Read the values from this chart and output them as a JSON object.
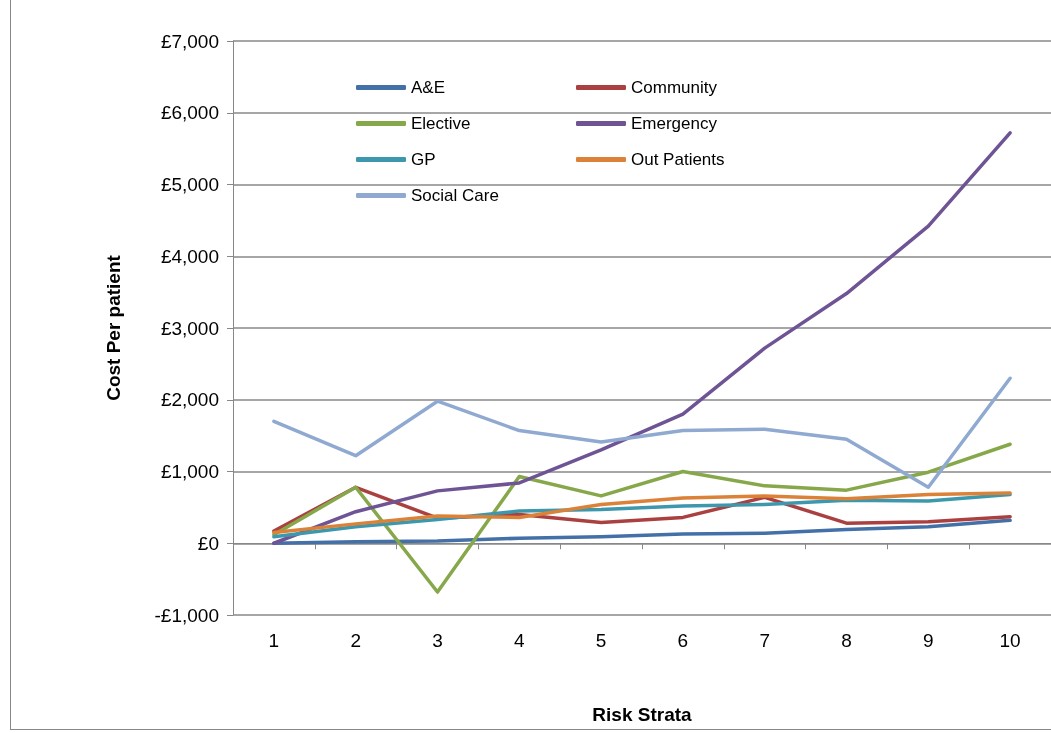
{
  "chart_data": {
    "type": "line",
    "xlabel": "Risk Strata",
    "ylabel": "Cost Per patient",
    "categories": [
      "1",
      "2",
      "3",
      "4",
      "5",
      "6",
      "7",
      "8",
      "9",
      "10"
    ],
    "series": [
      {
        "name": "A&E",
        "color": "#4470a8",
        "values": [
          0,
          20,
          30,
          70,
          90,
          130,
          140,
          190,
          230,
          320
        ]
      },
      {
        "name": "Community",
        "color": "#aa4140",
        "values": [
          170,
          780,
          350,
          400,
          290,
          360,
          640,
          280,
          300,
          370
        ]
      },
      {
        "name": "Elective",
        "color": "#87a84a",
        "values": [
          120,
          780,
          -680,
          930,
          660,
          1000,
          800,
          740,
          990,
          1380
        ]
      },
      {
        "name": "Emergency",
        "color": "#6e5494",
        "values": [
          0,
          440,
          730,
          840,
          1300,
          1800,
          2720,
          3480,
          4420,
          5720
        ]
      },
      {
        "name": "GP",
        "color": "#3d98ae",
        "values": [
          90,
          230,
          330,
          450,
          470,
          520,
          540,
          600,
          590,
          680
        ]
      },
      {
        "name": "Out Patients",
        "color": "#db8138",
        "values": [
          150,
          270,
          380,
          360,
          540,
          630,
          660,
          620,
          680,
          700
        ]
      },
      {
        "name": "Social Care",
        "color": "#8fa9d0",
        "values": [
          1700,
          1220,
          1980,
          1570,
          1410,
          1570,
          1590,
          1450,
          780,
          2300
        ]
      }
    ],
    "ylim": [
      -1000,
      7000
    ],
    "yticks": [
      {
        "value": -1000,
        "label": "-£1,000"
      },
      {
        "value": 0,
        "label": "£0"
      },
      {
        "value": 1000,
        "label": "£1,000"
      },
      {
        "value": 2000,
        "label": "£2,000"
      },
      {
        "value": 3000,
        "label": "£3,000"
      },
      {
        "value": 4000,
        "label": "£4,000"
      },
      {
        "value": 5000,
        "label": "£5,000"
      },
      {
        "value": 6000,
        "label": "£6,000"
      },
      {
        "value": 7000,
        "label": "£7,000"
      }
    ],
    "grid": "y",
    "legend": "top left",
    "marker": "none",
    "line_style": "solid"
  }
}
